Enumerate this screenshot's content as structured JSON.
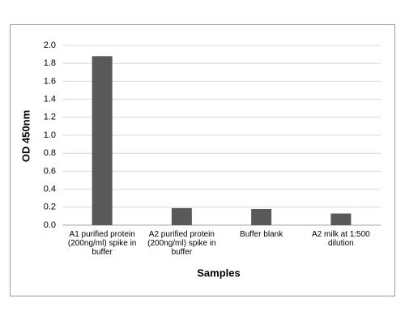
{
  "chart_data": {
    "type": "bar",
    "x_label": "Samples",
    "y_label": "OD 450nm",
    "categories": [
      "A1 purified protein (200ng/ml) spike in buffer",
      "A2 purified protein (200ng/ml) spike in buffer",
      "Buffer blank",
      "A2 milk at 1:500 dilution"
    ],
    "values": [
      1.88,
      0.19,
      0.18,
      0.13
    ],
    "color": "#595959",
    "ylim": [
      0,
      2
    ],
    "yticks": [
      {
        "value": 0,
        "label": "0.0"
      },
      0.2,
      0.4,
      0.6,
      0.8,
      {
        "value": 1,
        "label": "1.0"
      },
      1.2,
      1.4,
      1.6,
      1.8,
      {
        "value": 2,
        "label": "2.0"
      }
    ],
    "grid": true
  }
}
